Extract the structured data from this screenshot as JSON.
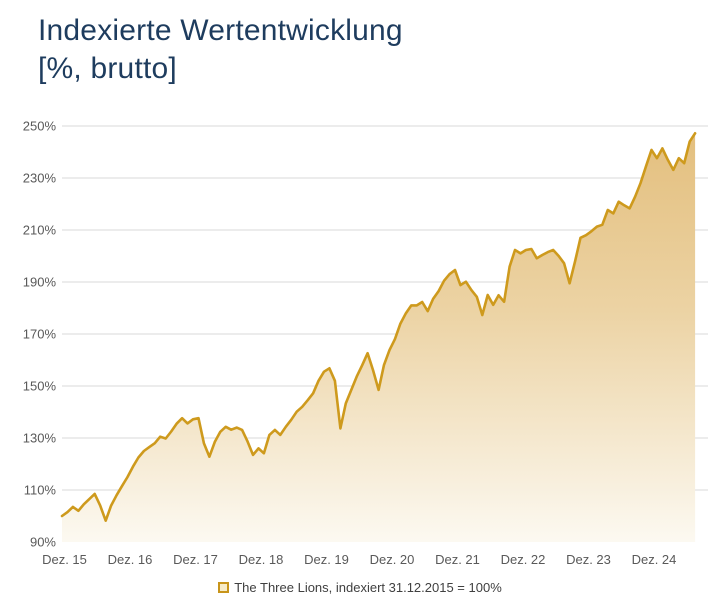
{
  "title": {
    "line1": "Indexierte Wertentwicklung",
    "line2": "[%, brutto]"
  },
  "legend": {
    "label": "The Three Lions, indexiert 31.12.2015 = 100%"
  },
  "colors": {
    "title": "#1e3c5e",
    "line": "#ce9a1d",
    "legend_marker_border": "#c8951b",
    "legend_marker_fill": "#f7ecc9",
    "fill_top": "#e3be7c",
    "fill_mid": "#ecd3a4",
    "fill_bottom": "#fcf9f1",
    "gridline": "#d9d9d9",
    "axis_text": "#595959"
  },
  "chart_data": {
    "type": "area",
    "title": "Indexierte Wertentwicklung [%, brutto]",
    "series_name": "The Three Lions, indexiert 31.12.2015 = 100%",
    "x_unit": "monthly",
    "x_range_note": "Dez 2015 bis Aug 2025, monatliche Werte",
    "x_tick_labels": [
      "Dez. 15",
      "Dez. 16",
      "Dez. 17",
      "Dez. 18",
      "Dez. 19",
      "Dez. 20",
      "Dez. 21",
      "Dez. 22",
      "Dez. 23",
      "Dez. 24"
    ],
    "y_tick_labels": [
      "90%",
      "110%",
      "130%",
      "150%",
      "170%",
      "190%",
      "210%",
      "230%",
      "250%"
    ],
    "ylim": [
      90,
      250
    ],
    "grid": "horizontal",
    "legend_position": "bottom-center",
    "values": [
      100,
      101.5,
      103.5,
      102,
      104.5,
      106.5,
      108.5,
      104,
      98.2,
      104,
      108,
      111.5,
      115,
      119,
      122.5,
      125,
      126.5,
      128,
      130.5,
      129.8,
      132.5,
      135.5,
      137.6,
      135.6,
      137.2,
      137.6,
      128,
      122.8,
      128.5,
      132.4,
      134.3,
      133.2,
      134,
      133.1,
      128.6,
      123.5,
      126,
      124.1,
      131.2,
      133.1,
      131.2,
      134.3,
      137,
      140.1,
      142,
      144.5,
      147.2,
      152,
      155.5,
      156.8,
      152,
      133.7,
      143.3,
      148.5,
      153.6,
      158,
      162.6,
      156,
      148.5,
      158.1,
      163.8,
      168,
      174,
      178,
      181,
      181,
      182.3,
      178.8,
      183.5,
      186.5,
      190.5,
      193,
      194.6,
      188.8,
      190.1,
      186.9,
      184.3,
      177.3,
      185,
      181.2,
      184.9,
      182.4,
      195.9,
      202.3,
      201,
      202.3,
      202.7,
      199.1,
      200.4,
      201.5,
      202.3,
      200,
      197.2,
      189.5,
      198,
      207,
      208,
      209.5,
      211.3,
      212,
      217.7,
      216.4,
      220.9,
      219.5,
      218.3,
      222.8,
      228,
      234.5,
      240.8,
      237.6,
      241.4,
      237,
      233.1,
      237.6,
      235.7,
      244,
      247.2
    ]
  }
}
